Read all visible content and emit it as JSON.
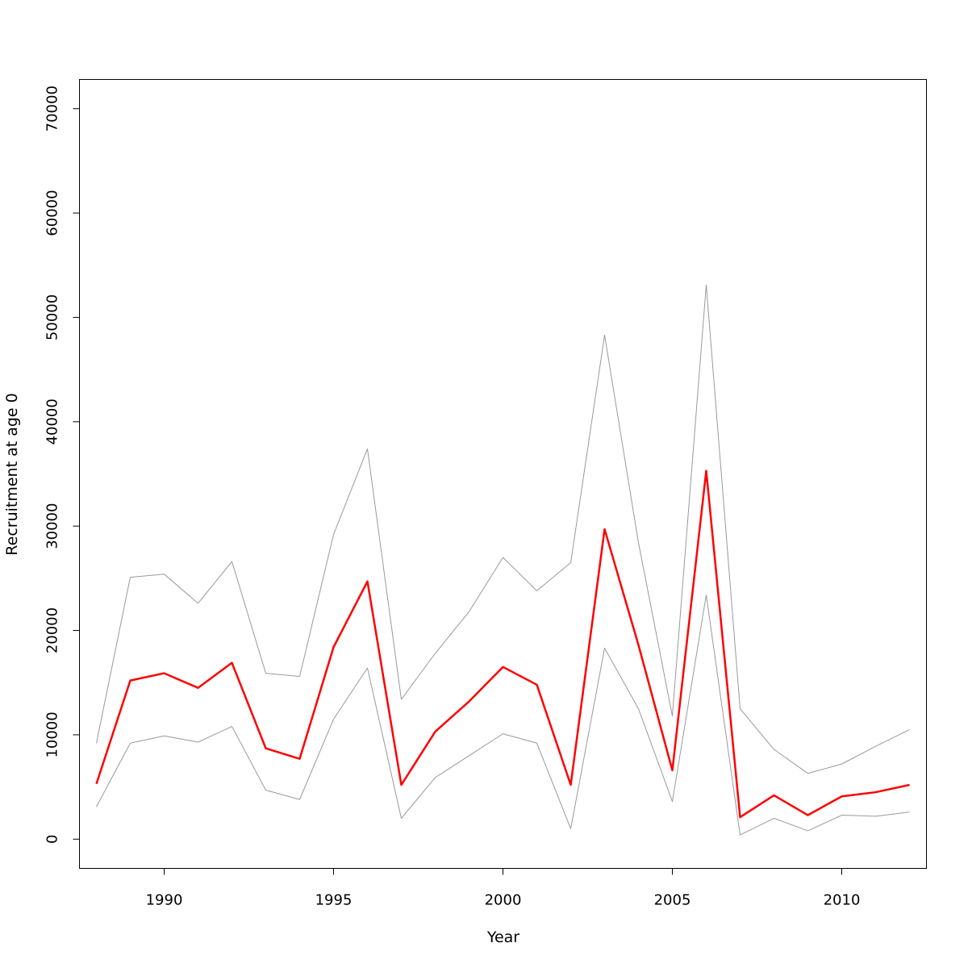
{
  "chart_data": {
    "type": "line",
    "title": "",
    "xlabel": "Year",
    "ylabel": "Recruitment at age 0",
    "xlim": [
      1987.5,
      2012.5
    ],
    "ylim": [
      -2800,
      72800
    ],
    "x_ticks": [
      1990,
      1995,
      2000,
      2005,
      2010
    ],
    "y_ticks": [
      0,
      10000,
      20000,
      30000,
      40000,
      50000,
      60000,
      70000
    ],
    "grid": false,
    "legend": "none",
    "x": [
      1988,
      1989,
      1990,
      1991,
      1992,
      1993,
      1994,
      1995,
      1996,
      1997,
      1998,
      1999,
      2000,
      2001,
      2002,
      2003,
      2004,
      2005,
      2006,
      2007,
      2008,
      2009,
      2010,
      2011,
      2012
    ],
    "series": [
      {
        "color": "#ff0000",
        "width": 2.5,
        "values": [
          5300,
          15200,
          15900,
          14500,
          16900,
          8700,
          7700,
          18400,
          24700,
          5200,
          10300,
          13200,
          16500,
          14800,
          5200,
          29700,
          18600,
          6600,
          35300,
          2100,
          4200,
          2300,
          4100,
          4500,
          5200
        ]
      },
      {
        "color": "#999999",
        "width": 1,
        "values": [
          9200,
          25100,
          25400,
          22600,
          26600,
          15900,
          15600,
          29200,
          37400,
          13400,
          17800,
          21800,
          27000,
          23800,
          26500,
          48300,
          28400,
          11800,
          53100,
          12500,
          8600,
          6300,
          7200,
          8900,
          10500
        ]
      },
      {
        "color": "#999999",
        "width": 1,
        "values": [
          3100,
          9200,
          9900,
          9300,
          10800,
          4700,
          3800,
          11500,
          16400,
          2000,
          5900,
          8000,
          10100,
          9200,
          1000,
          18300,
          12500,
          3600,
          23400,
          400,
          2000,
          800,
          2300,
          2200,
          2600
        ]
      }
    ]
  }
}
